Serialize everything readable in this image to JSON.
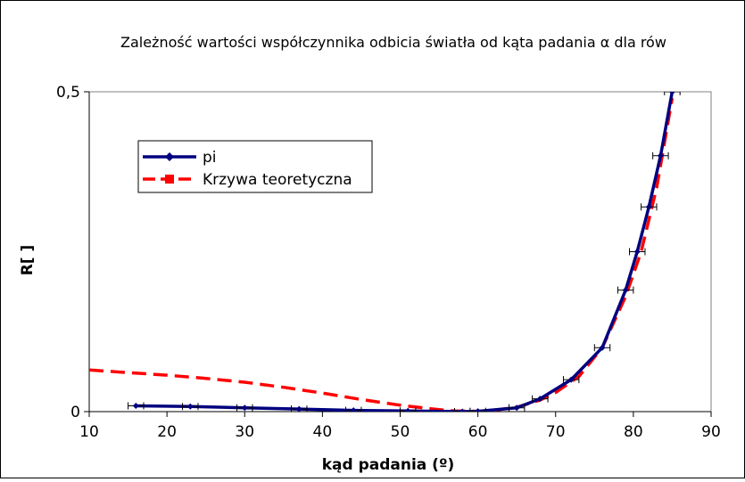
{
  "chart_data": {
    "type": "line",
    "title": "Zależność wartości współczynnika odbicia światła od kąta padania α dla rów",
    "xlabel": "kąd padania (º)",
    "ylabel": "R[ ]",
    "xlim": [
      10,
      90
    ],
    "ylim": [
      0,
      0.5
    ],
    "x_ticks": [
      "10",
      "20",
      "30",
      "40",
      "50",
      "60",
      "70",
      "80",
      "90"
    ],
    "y_ticks": [
      "0",
      "0,5"
    ],
    "grid": false,
    "legend_placement": "top-left",
    "series": [
      {
        "name": "pi",
        "color": "#000080",
        "style": "solid",
        "marker": "diamond",
        "x": [
          16,
          23,
          30,
          37,
          44,
          51,
          58,
          60,
          65,
          68,
          72,
          76,
          79,
          80.5,
          82,
          83.5,
          85
        ],
        "y": [
          0.009,
          0.008,
          0.006,
          0.004,
          0.002,
          0.001,
          0.0,
          0.0005,
          0.006,
          0.02,
          0.05,
          0.1,
          0.19,
          0.25,
          0.32,
          0.4,
          0.5
        ],
        "x_error": 1
      },
      {
        "name": "Krzywa teoretyczna",
        "color": "#ff0000",
        "style": "dashed",
        "marker": "square",
        "x": [
          10,
          15,
          20,
          25,
          30,
          35,
          40,
          45,
          50,
          55,
          57,
          60,
          62,
          65,
          68,
          70,
          73,
          76,
          79,
          81,
          83,
          85
        ],
        "y": [
          0.065,
          0.061,
          0.057,
          0.052,
          0.046,
          0.038,
          0.029,
          0.019,
          0.01,
          0.003,
          0.001,
          0.0005,
          0.002,
          0.007,
          0.018,
          0.03,
          0.055,
          0.1,
          0.18,
          0.25,
          0.35,
          0.49
        ]
      }
    ]
  }
}
